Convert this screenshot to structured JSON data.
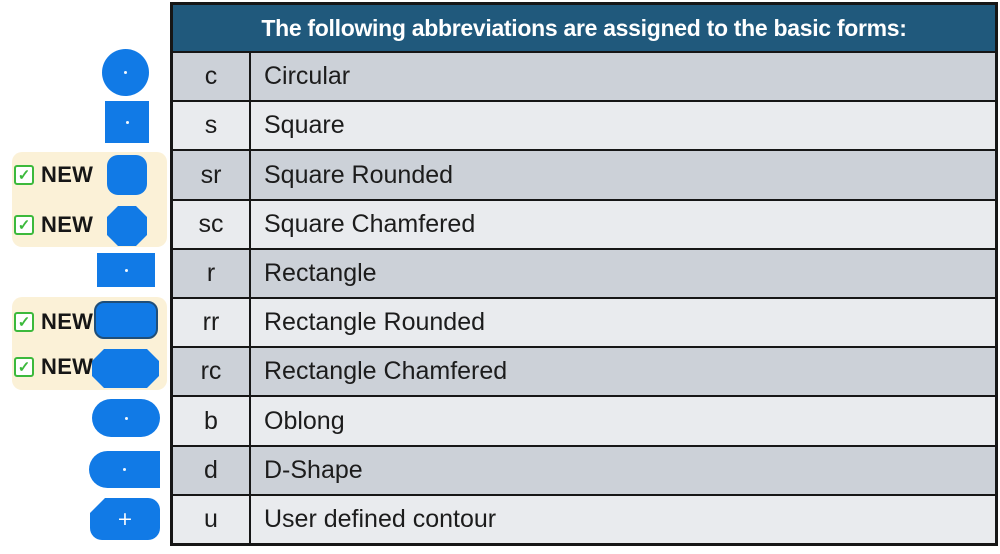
{
  "header": {
    "title": "The following abbreviations are assigned to the basic forms:"
  },
  "table": {
    "rows": [
      {
        "abbr": "c",
        "name": "Circular",
        "shape": "circle",
        "new": false
      },
      {
        "abbr": "s",
        "name": "Square",
        "shape": "square",
        "new": false
      },
      {
        "abbr": "sr",
        "name": "Square Rounded",
        "shape": "square-rounded",
        "new": true
      },
      {
        "abbr": "sc",
        "name": "Square Chamfered",
        "shape": "square-chamfered",
        "new": true
      },
      {
        "abbr": "r",
        "name": "Rectangle",
        "shape": "rectangle",
        "new": false
      },
      {
        "abbr": "rr",
        "name": "Rectangle Rounded",
        "shape": "rectangle-rounded",
        "new": true
      },
      {
        "abbr": "rc",
        "name": "Rectangle Chamfered",
        "shape": "rectangle-chamfered",
        "new": true
      },
      {
        "abbr": "b",
        "name": "Oblong",
        "shape": "oblong",
        "new": false
      },
      {
        "abbr": "d",
        "name": "D-Shape",
        "shape": "d-shape",
        "new": false
      },
      {
        "abbr": "u",
        "name": "User defined contour",
        "shape": "user-defined",
        "new": false
      }
    ]
  },
  "new_badge": {
    "label": "NEW"
  },
  "icons": {
    "checkbox_check": "✓",
    "plus_marker": "+"
  },
  "colors": {
    "header_bg": "#20597C",
    "header_text": "#ffffff",
    "row_dark": "#ccd1d8",
    "row_light": "#e9ebee",
    "table_border": "#161616",
    "shape_blue": "#117ae6",
    "shape_border_navy": "#1f4e79",
    "new_badge_bg": "#fbf1d7",
    "checkbox_green": "#3cb93c",
    "text": "#1c1c1c"
  }
}
